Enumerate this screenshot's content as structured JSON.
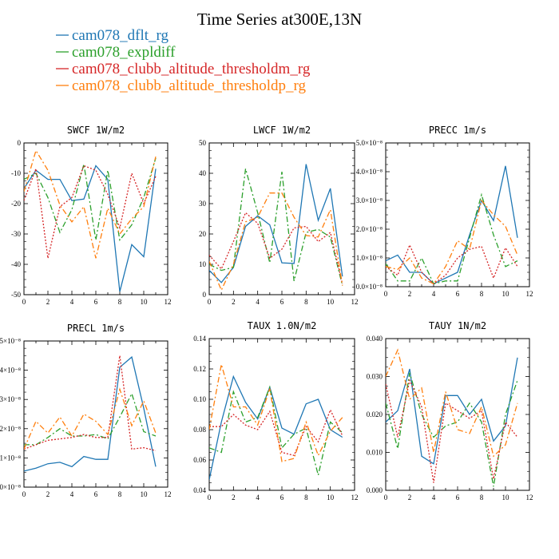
{
  "title": "Time Series at300E,13N",
  "legend": [
    {
      "label": "cam078_dflt_rg",
      "color": "#1f77b4",
      "dash": "solid"
    },
    {
      "label": "cam078_expldiff",
      "color": "#2ca02c",
      "dash": "dashdot"
    },
    {
      "label": "cam078_clubb_altitude_thresholdm_rg",
      "color": "#d62728",
      "dash": "dotted"
    },
    {
      "label": "cam078_clubb_altitude_thresholdp_rg",
      "color": "#ff7f0e",
      "dash": "dashdot"
    }
  ],
  "chart_data": [
    {
      "type": "line",
      "name": "SWCF",
      "title": "SWCF  1W/m2",
      "x": [
        0,
        1,
        2,
        3,
        4,
        5,
        6,
        7,
        8,
        9,
        10,
        11
      ],
      "xlim": [
        0,
        12
      ],
      "xticks": [
        "0",
        "2",
        "4",
        "6",
        "8",
        "10",
        "12"
      ],
      "ylim": [
        -50,
        0
      ],
      "yticks": [
        -50,
        -40,
        -30,
        -20,
        -10,
        0
      ],
      "ytick_labels": [
        "-50",
        "-40",
        "-30",
        "-20",
        "-10",
        "0"
      ],
      "series": [
        {
          "name": "cam078_dflt_rg",
          "values": [
            -15,
            -9,
            -12,
            -12,
            -19,
            -18.5,
            -7.5,
            -12,
            -49,
            -33.5,
            -37.5,
            -8.5
          ]
        },
        {
          "name": "cam078_expldiff",
          "values": [
            -12,
            -10,
            -18,
            -29.5,
            -22,
            -7,
            -32,
            -9,
            -32,
            -27,
            -18,
            -5
          ]
        },
        {
          "name": "cam078_clubb_altitude_thresholdm_rg",
          "values": [
            -19,
            -8.5,
            -38,
            -21,
            -18,
            -7.5,
            -9,
            -17,
            -28,
            -10,
            -20,
            -11
          ]
        },
        {
          "name": "cam078_clubb_altitude_thresholdp_rg",
          "values": [
            -16,
            -2.5,
            -9,
            -20.5,
            -26,
            -21,
            -38,
            -21.5,
            -30,
            -25,
            -21,
            -4.5
          ]
        }
      ]
    },
    {
      "type": "line",
      "name": "LWCF",
      "title": "LWCF  1W/m2",
      "x": [
        0,
        1,
        2,
        3,
        4,
        5,
        6,
        7,
        8,
        9,
        10,
        11
      ],
      "xlim": [
        0,
        12
      ],
      "xticks": [
        "0",
        "2",
        "4",
        "6",
        "8",
        "10",
        "12"
      ],
      "ylim": [
        0,
        50
      ],
      "yticks": [
        0,
        10,
        20,
        30,
        40,
        50
      ],
      "ytick_labels": [
        "0",
        "10",
        "20",
        "30",
        "40",
        "50"
      ],
      "series": [
        {
          "name": "cam078_dflt_rg",
          "values": [
            8,
            4,
            9,
            22.5,
            26,
            23,
            10.5,
            10.3,
            43,
            24.5,
            35,
            6
          ]
        },
        {
          "name": "cam078_expldiff",
          "values": [
            10,
            8,
            9,
            41.5,
            27,
            10.5,
            40.5,
            4.5,
            20.5,
            21.5,
            19,
            3
          ]
        },
        {
          "name": "cam078_clubb_altitude_thresholdm_rg",
          "values": [
            13,
            8.5,
            17.5,
            27,
            23.5,
            12,
            15,
            22,
            22.5,
            17.5,
            20.5,
            3.5
          ]
        },
        {
          "name": "cam078_clubb_altitude_thresholdp_rg",
          "values": [
            11,
            1.5,
            10,
            24,
            25.5,
            33.5,
            33.5,
            25.5,
            19.5,
            19,
            28,
            3
          ]
        }
      ]
    },
    {
      "type": "line",
      "name": "PRECC",
      "title": "PRECC  1m/s",
      "x": [
        0,
        1,
        2,
        3,
        4,
        5,
        6,
        7,
        8,
        9,
        10,
        11
      ],
      "xlim": [
        0,
        12
      ],
      "xticks": [
        "0",
        "2",
        "4",
        "6",
        "8",
        "10",
        "12"
      ],
      "ylim": [
        0,
        5e-08
      ],
      "yticks": [
        0,
        1e-08,
        2e-08,
        3e-08,
        4e-08,
        5e-08
      ],
      "ytick_labels": [
        "0.0×10⁻⁸",
        "1.0×10⁻⁸",
        "2.0×10⁻⁸",
        "3.0×10⁻⁸",
        "4.0×10⁻⁸",
        "5.0×10⁻⁸"
      ],
      "series": [
        {
          "name": "cam078_dflt_rg",
          "values": [
            9e-09,
            1.1e-08,
            5e-09,
            5e-09,
            1e-09,
            3e-09,
            5e-09,
            1.8e-08,
            3e-08,
            2.3e-08,
            4.2e-08,
            1.7e-08
          ]
        },
        {
          "name": "cam078_expldiff",
          "values": [
            8e-09,
            2e-09,
            2e-09,
            1e-08,
            1e-09,
            2e-09,
            2e-09,
            1.7e-08,
            3.2e-08,
            1.8e-08,
            7e-09,
            9e-09
          ]
        },
        {
          "name": "cam078_clubb_altitude_thresholdm_rg",
          "values": [
            7e-09,
            4e-09,
            1.45e-08,
            5e-09,
            1e-09,
            4e-09,
            1e-08,
            1.3e-08,
            1.4e-08,
            3e-09,
            1.35e-08,
            7e-09
          ]
        },
        {
          "name": "cam078_clubb_altitude_thresholdp_rg",
          "values": [
            7e-09,
            6e-09,
            1e-08,
            3e-09,
            1e-09,
            7e-09,
            1.6e-08,
            1.3e-08,
            3e-08,
            2.5e-08,
            2.1e-08,
            1.1e-08
          ]
        }
      ]
    },
    {
      "type": "line",
      "name": "PRECL",
      "title": "PRECL  1m/s",
      "x": [
        0,
        1,
        2,
        3,
        4,
        5,
        6,
        7,
        8,
        9,
        10,
        11
      ],
      "xlim": [
        0,
        12
      ],
      "xticks": [
        "0",
        "2",
        "4",
        "6",
        "8",
        "10",
        "12"
      ],
      "ylim": [
        0,
        5
      ],
      "yticks": [
        0,
        1,
        2,
        3,
        4,
        5
      ],
      "ytick_labels": [
        "0×10⁻⁸",
        "1×10⁻⁸",
        "2×10⁻⁸",
        "3×10⁻⁸",
        "4×10⁻⁸",
        "5×10⁻⁸"
      ],
      "series": [
        {
          "name": "cam078_dflt_rg",
          "values": [
            0.55,
            0.65,
            0.8,
            0.85,
            0.7,
            1.05,
            0.95,
            0.95,
            4.1,
            4.45,
            2.7,
            0.7
          ]
        },
        {
          "name": "cam078_expldiff",
          "values": [
            1.45,
            1.45,
            1.7,
            2.0,
            1.75,
            1.75,
            1.8,
            1.65,
            2.4,
            3.2,
            1.9,
            1.75
          ]
        },
        {
          "name": "cam078_clubb_altitude_thresholdm_rg",
          "values": [
            1.3,
            1.45,
            1.6,
            1.65,
            1.7,
            1.8,
            1.7,
            1.7,
            4.5,
            1.3,
            1.35,
            1.25
          ]
        },
        {
          "name": "cam078_clubb_altitude_thresholdp_rg",
          "values": [
            1.3,
            2.25,
            1.85,
            2.4,
            1.75,
            2.5,
            2.25,
            1.8,
            3.35,
            2.1,
            2.95,
            1.85
          ]
        }
      ]
    },
    {
      "type": "line",
      "name": "TAUX",
      "title": "TAUX  1.0N/m2",
      "x": [
        0,
        1,
        2,
        3,
        4,
        5,
        6,
        7,
        8,
        9,
        10,
        11
      ],
      "xlim": [
        0,
        12
      ],
      "xticks": [
        "0",
        "2",
        "4",
        "6",
        "8",
        "10",
        "12"
      ],
      "ylim": [
        0.04,
        0.14
      ],
      "yticks": [
        0.04,
        0.06,
        0.08,
        0.1,
        0.12,
        0.14
      ],
      "ytick_labels": [
        "0.04",
        "0.06",
        "0.08",
        "0.10",
        "0.12",
        "0.14"
      ],
      "series": [
        {
          "name": "cam078_dflt_rg",
          "values": [
            0.047,
            0.085,
            0.115,
            0.098,
            0.087,
            0.108,
            0.081,
            0.077,
            0.097,
            0.1,
            0.08,
            0.075
          ]
        },
        {
          "name": "cam078_expldiff",
          "values": [
            0.068,
            0.065,
            0.105,
            0.085,
            0.088,
            0.108,
            0.068,
            0.077,
            0.081,
            0.05,
            0.085,
            0.078
          ]
        },
        {
          "name": "cam078_clubb_altitude_thresholdm_rg",
          "values": [
            0.082,
            0.082,
            0.09,
            0.083,
            0.08,
            0.092,
            0.065,
            0.063,
            0.082,
            0.072,
            0.093,
            0.076
          ]
        },
        {
          "name": "cam078_clubb_altitude_thresholdp_rg",
          "values": [
            0.08,
            0.123,
            0.095,
            0.095,
            0.083,
            0.107,
            0.059,
            0.061,
            0.085,
            0.063,
            0.079,
            0.088
          ]
        }
      ]
    },
    {
      "type": "line",
      "name": "TAUY",
      "title": "TAUY  1N/m2",
      "x": [
        0,
        1,
        2,
        3,
        4,
        5,
        6,
        7,
        8,
        9,
        10,
        11
      ],
      "xlim": [
        0,
        12
      ],
      "xticks": [
        "0",
        "2",
        "4",
        "6",
        "8",
        "10",
        "12"
      ],
      "ylim": [
        0,
        0.04
      ],
      "yticks": [
        0,
        0.01,
        0.02,
        0.03,
        0.04
      ],
      "ytick_labels": [
        "0.000",
        "0.010",
        "0.020",
        "0.030",
        "0.040"
      ],
      "series": [
        {
          "name": "cam078_dflt_rg",
          "values": [
            0.018,
            0.021,
            0.032,
            0.009,
            0.007,
            0.025,
            0.025,
            0.02,
            0.024,
            0.013,
            0.017,
            0.035
          ]
        },
        {
          "name": "cam078_expldiff",
          "values": [
            0.023,
            0.011,
            0.031,
            0.02,
            0.014,
            0.017,
            0.018,
            0.023,
            0.018,
            0.001,
            0.02,
            0.029
          ]
        },
        {
          "name": "cam078_clubb_altitude_thresholdm_rg",
          "values": [
            0.028,
            0.014,
            0.029,
            0.022,
            0.002,
            0.023,
            0.021,
            0.019,
            0.021,
            0.003,
            0.018,
            0.014
          ]
        },
        {
          "name": "cam078_clubb_altitude_thresholdp_rg",
          "values": [
            0.03,
            0.037,
            0.024,
            0.027,
            0.01,
            0.026,
            0.016,
            0.015,
            0.022,
            0.009,
            0.012,
            0.023
          ]
        }
      ]
    }
  ]
}
